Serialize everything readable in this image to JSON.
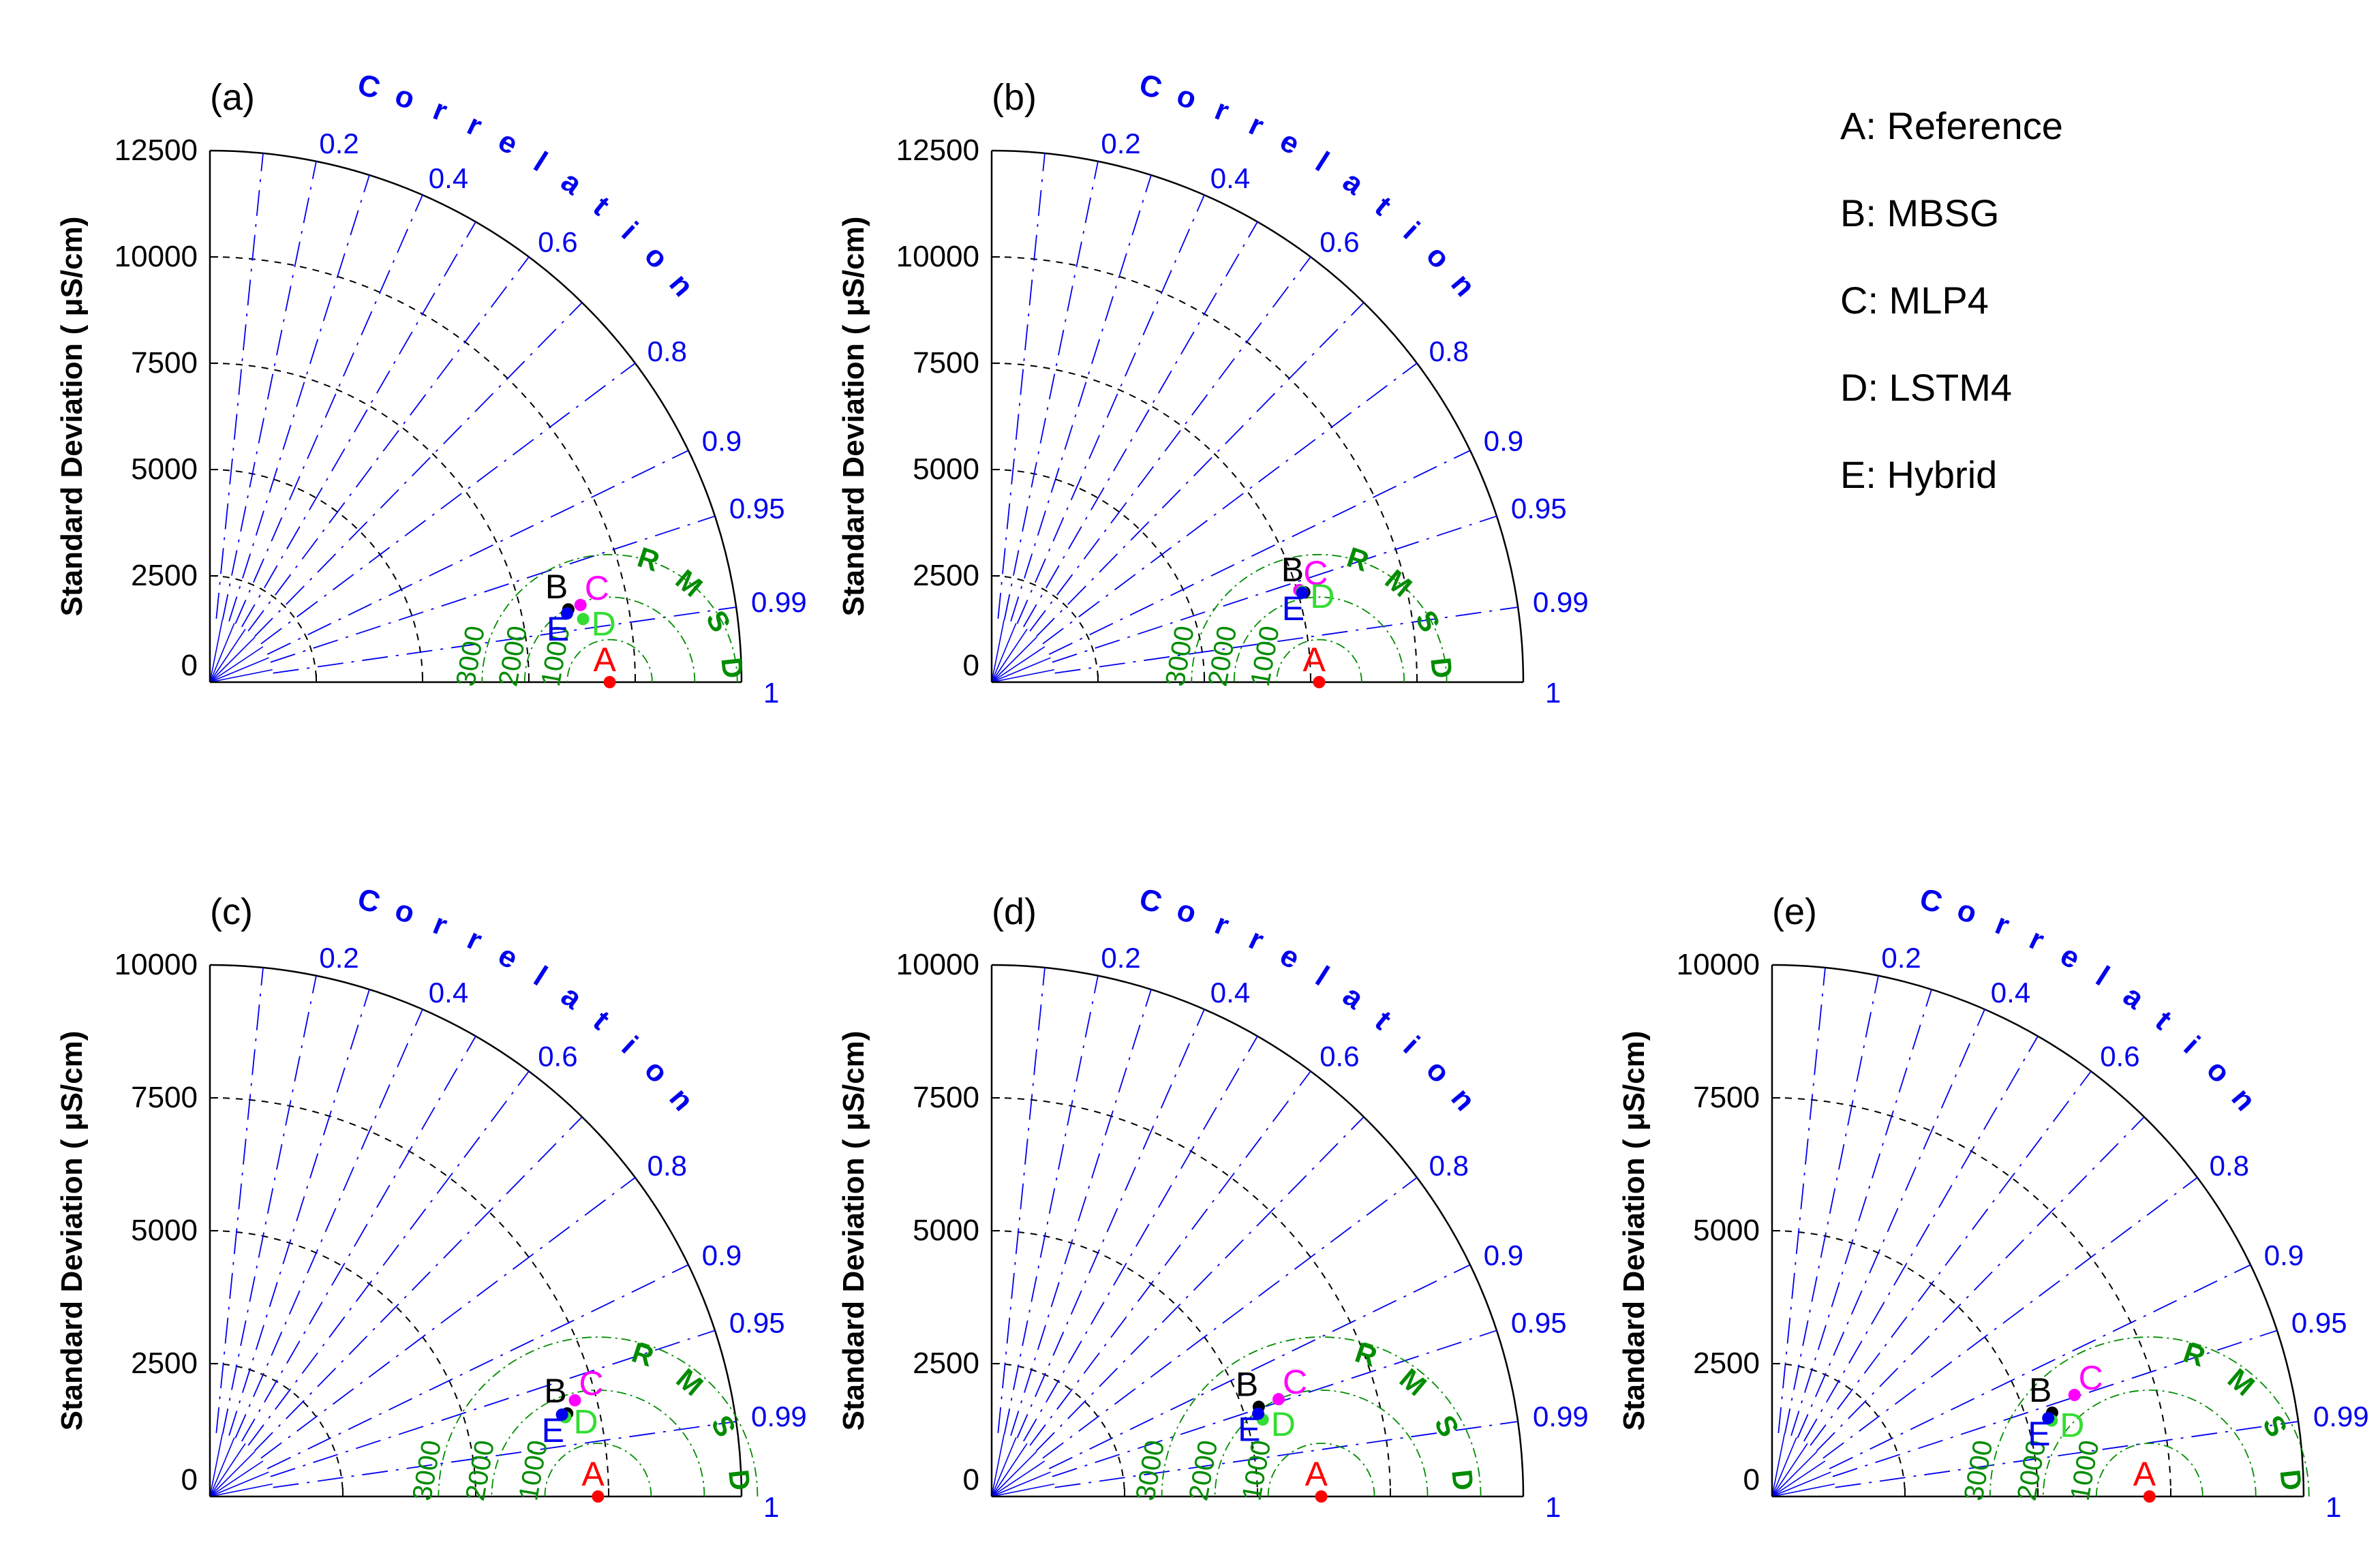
{
  "legend": {
    "items": [
      "A: Reference",
      "B: MBSG",
      "C: MLP4",
      "D: LSTM4",
      "E: Hybrid"
    ]
  },
  "colors": {
    "correlation": "#0000ee",
    "rmsd": "#008c00",
    "A": "#ff0000",
    "B": "#000000",
    "C": "#ff00ff",
    "D": "#33dd33",
    "E": "#0000ee",
    "stdArc": "#000000"
  },
  "chart_data": [
    {
      "type": "taylor_diagram",
      "panel": "(a)",
      "ylabel": "Standard Deviation ( μS/cm)",
      "std_ticks": [
        0,
        2500,
        5000,
        7500,
        10000,
        12500
      ],
      "std_max": 12500,
      "corr_ticks": [
        "0.2",
        "0.4",
        "0.6",
        "0.8",
        "0.9",
        "0.95",
        "0.99",
        "1"
      ],
      "corr_title": "Correlation",
      "rmsd_title": "RMSD",
      "rmsd_labels": [
        "3000",
        "2000",
        "1000"
      ],
      "points": [
        {
          "label": "A",
          "name": "Reference",
          "std": 9400,
          "corr": 1.0
        },
        {
          "label": "B",
          "name": "MBSG",
          "std": 8600,
          "corr": 0.98
        },
        {
          "label": "C",
          "name": "MLP4",
          "std": 8900,
          "corr": 0.979
        },
        {
          "label": "D",
          "name": "LSTM4",
          "std": 8900,
          "corr": 0.986
        },
        {
          "label": "E",
          "name": "Hybrid",
          "std": 8550,
          "corr": 0.982
        }
      ]
    },
    {
      "type": "taylor_diagram",
      "panel": "(b)",
      "ylabel": "Standard Deviation ( μS/cm)",
      "std_ticks": [
        0,
        2500,
        5000,
        7500,
        10000,
        12500
      ],
      "std_max": 12500,
      "corr_ticks": [
        "0.2",
        "0.4",
        "0.6",
        "0.8",
        "0.9",
        "0.95",
        "0.99",
        "1"
      ],
      "corr_title": "Correlation",
      "rmsd_title": "RMSD",
      "rmsd_labels": [
        "3000",
        "2000",
        "1000"
      ],
      "points": [
        {
          "label": "A",
          "name": "Reference",
          "std": 7700,
          "corr": 1.0
        },
        {
          "label": "B",
          "name": "MBSG",
          "std": 7650,
          "corr": 0.961
        },
        {
          "label": "C",
          "name": "MLP4",
          "std": 7550,
          "corr": 0.958
        },
        {
          "label": "D",
          "name": "LSTM4",
          "std": 7600,
          "corr": 0.96
        },
        {
          "label": "E",
          "name": "Hybrid",
          "std": 7600,
          "corr": 0.961
        }
      ]
    },
    {
      "type": "taylor_diagram",
      "panel": "(c)",
      "ylabel": "Standard Deviation ( μS/cm)",
      "std_ticks": [
        0,
        2500,
        5000,
        7500,
        10000
      ],
      "std_max": 10000,
      "corr_ticks": [
        "0.2",
        "0.4",
        "0.6",
        "0.8",
        "0.9",
        "0.95",
        "0.99",
        "1"
      ],
      "corr_title": "Correlation",
      "rmsd_title": "RMSD",
      "rmsd_labels": [
        "3000",
        "2000",
        "1000"
      ],
      "points": [
        {
          "label": "A",
          "name": "Reference",
          "std": 7300,
          "corr": 1.0
        },
        {
          "label": "B",
          "name": "MBSG",
          "std": 6900,
          "corr": 0.974
        },
        {
          "label": "C",
          "name": "MLP4",
          "std": 7100,
          "corr": 0.967
        },
        {
          "label": "D",
          "name": "LSTM4",
          "std": 6850,
          "corr": 0.976
        },
        {
          "label": "E",
          "name": "Hybrid",
          "std": 6800,
          "corr": 0.974
        }
      ]
    },
    {
      "type": "taylor_diagram",
      "panel": "(d)",
      "ylabel": "Standard Deviation ( μS/cm)",
      "std_ticks": [
        0,
        2500,
        5000,
        7500,
        10000
      ],
      "std_max": 10000,
      "corr_ticks": [
        "0.2",
        "0.4",
        "0.6",
        "0.8",
        "0.9",
        "0.95",
        "0.99",
        "1"
      ],
      "corr_title": "Correlation",
      "rmsd_title": "RMSD",
      "rmsd_labels": [
        "3000",
        "2000",
        "1000"
      ],
      "points": [
        {
          "label": "A",
          "name": "Reference",
          "std": 6200,
          "corr": 1.0
        },
        {
          "label": "B",
          "name": "MBSG",
          "std": 5300,
          "corr": 0.948
        },
        {
          "label": "C",
          "name": "MLP4",
          "std": 5700,
          "corr": 0.947
        },
        {
          "label": "D",
          "name": "LSTM4",
          "std": 5300,
          "corr": 0.962
        },
        {
          "label": "E",
          "name": "Hybrid",
          "std": 5250,
          "corr": 0.955
        }
      ]
    },
    {
      "type": "taylor_diagram",
      "panel": "(e)",
      "ylabel": "Standard Deviation ( μS/cm)",
      "std_ticks": [
        0,
        2500,
        5000,
        7500,
        10000
      ],
      "std_max": 10000,
      "corr_ticks": [
        "0.2",
        "0.4",
        "0.6",
        "0.8",
        "0.9",
        "0.95",
        "0.99",
        "1"
      ],
      "corr_title": "Correlation",
      "rmsd_title": "RMSD",
      "rmsd_labels": [
        "3000",
        "2000",
        "1000"
      ],
      "points": [
        {
          "label": "A",
          "name": "Reference",
          "std": 7100,
          "corr": 1.0
        },
        {
          "label": "B",
          "name": "MBSG",
          "std": 5500,
          "corr": 0.958
        },
        {
          "label": "C",
          "name": "MLP4",
          "std": 6000,
          "corr": 0.948
        },
        {
          "label": "D",
          "name": "LSTM4",
          "std": 5450,
          "corr": 0.965
        },
        {
          "label": "E",
          "name": "Hybrid",
          "std": 5400,
          "corr": 0.962
        }
      ]
    }
  ]
}
